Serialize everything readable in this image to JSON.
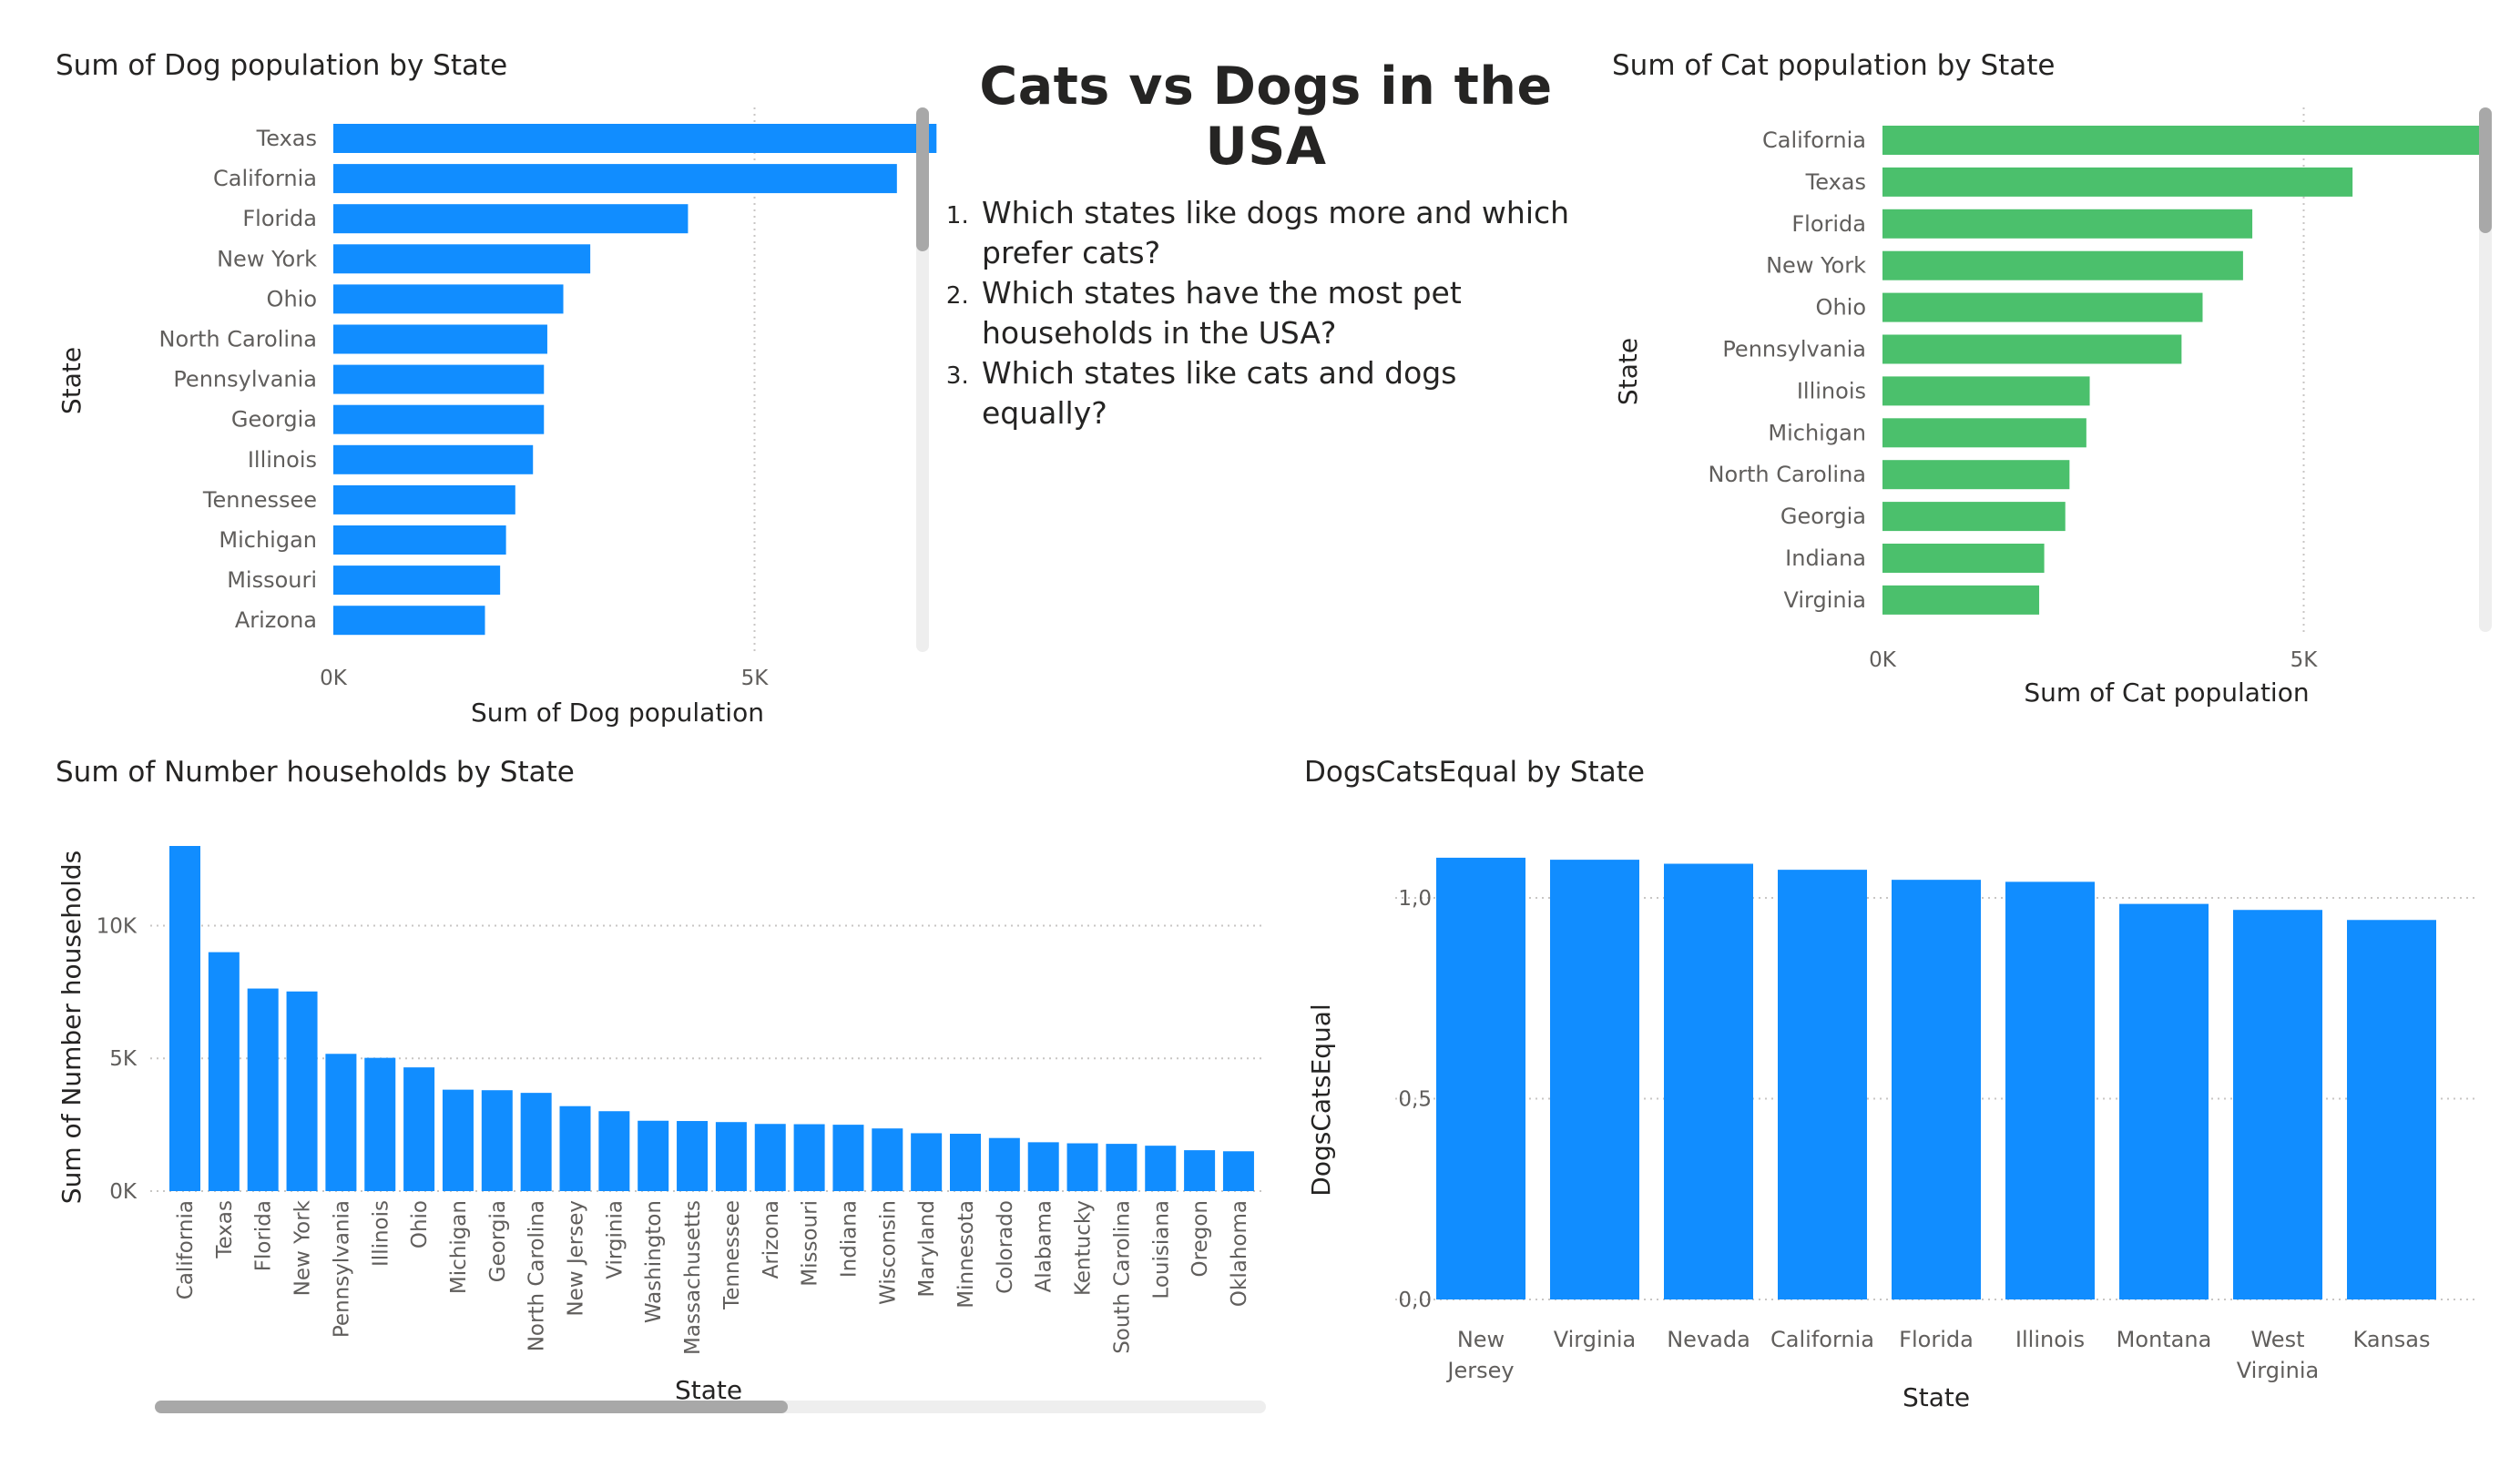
{
  "report": {
    "title": "Cats vs Dogs in the USA",
    "questions": [
      "Which states like dogs more and which prefer cats?",
      "Which states have the most pet households in the USA?",
      "Which states like cats and dogs equally?"
    ]
  },
  "colors": {
    "dog_bar": "#118DFF",
    "cat_bar": "#4BC06C",
    "axis_text": "#605E5C",
    "title_text": "#252423",
    "grid": "#c8c6c4"
  },
  "chart_data": [
    {
      "id": "dog",
      "type": "bar",
      "orientation": "horizontal",
      "title": "Sum of Dog population by State",
      "xlabel": "Sum of Dog population",
      "ylabel": "State",
      "categories": [
        "Texas",
        "California",
        "Florida",
        "New York",
        "Ohio",
        "North Carolina",
        "Pennsylvania",
        "Georgia",
        "Illinois",
        "Tennessee",
        "Michigan",
        "Missouri",
        "Arizona"
      ],
      "values": [
        7160,
        6690,
        4210,
        3050,
        2730,
        2540,
        2500,
        2500,
        2370,
        2160,
        2050,
        1980,
        1800
      ],
      "xticks": [
        "0K",
        "5K"
      ],
      "xtick_values": [
        0,
        5000
      ],
      "xlim": [
        0,
        8000
      ],
      "grid": true,
      "color": "#118DFF"
    },
    {
      "id": "cat",
      "type": "bar",
      "orientation": "horizontal",
      "title": "Sum of Cat population by State",
      "xlabel": "Sum of Cat population",
      "ylabel": "State",
      "categories": [
        "California",
        "Texas",
        "Florida",
        "New York",
        "Ohio",
        "Pennsylvania",
        "Illinois",
        "Michigan",
        "North Carolina",
        "Georgia",
        "Indiana",
        "Virginia"
      ],
      "values": [
        7120,
        5580,
        4390,
        4280,
        3800,
        3550,
        2460,
        2420,
        2220,
        2170,
        1920,
        1860
      ],
      "xticks": [
        "0K",
        "5K"
      ],
      "xtick_values": [
        0,
        5000
      ],
      "xlim": [
        0,
        8000
      ],
      "grid": true,
      "color": "#4BC06C"
    },
    {
      "id": "households",
      "type": "bar",
      "orientation": "vertical",
      "title": "Sum of Number households by State",
      "xlabel": "State",
      "ylabel": "Sum of Number households",
      "categories": [
        "California",
        "Texas",
        "Florida",
        "New York",
        "Pennsylvania",
        "Illinois",
        "Ohio",
        "Michigan",
        "Georgia",
        "North Carolina",
        "New Jersey",
        "Virginia",
        "Washington",
        "Massachusetts",
        "Tennessee",
        "Arizona",
        "Missouri",
        "Indiana",
        "Wisconsin",
        "Maryland",
        "Minnesota",
        "Colorado",
        "Alabama",
        "Kentucky",
        "South Carolina",
        "Louisiana",
        "Oregon",
        "Oklahoma"
      ],
      "values": [
        13000,
        9000,
        7630,
        7520,
        5170,
        5020,
        4660,
        3820,
        3800,
        3700,
        3200,
        3010,
        2650,
        2640,
        2600,
        2530,
        2520,
        2500,
        2360,
        2180,
        2160,
        2000,
        1840,
        1800,
        1780,
        1710,
        1540,
        1500
      ],
      "yticks": [
        "0K",
        "5K",
        "10K"
      ],
      "ytick_values": [
        0,
        5000,
        10000
      ],
      "ylim": [
        0,
        13000
      ],
      "grid": true,
      "color": "#118DFF"
    },
    {
      "id": "equal",
      "type": "bar",
      "orientation": "vertical",
      "title": "DogsCatsEqual by State",
      "xlabel": "State",
      "ylabel": "DogsCatsEqual",
      "categories": [
        [
          "New",
          "Jersey"
        ],
        [
          "Virginia"
        ],
        [
          "Nevada"
        ],
        [
          "California"
        ],
        [
          "Florida"
        ],
        [
          "Illinois"
        ],
        [
          "Montana"
        ],
        [
          "West",
          "Virginia"
        ],
        [
          "Kansas"
        ]
      ],
      "values": [
        1.1,
        1.095,
        1.085,
        1.07,
        1.045,
        1.04,
        0.985,
        0.97,
        0.945
      ],
      "yticks": [
        "0,0",
        "0,5",
        "1,0"
      ],
      "ytick_values": [
        0,
        0.5,
        1.0
      ],
      "ylim": [
        0,
        1.0
      ],
      "grid": true,
      "color": "#118DFF"
    }
  ]
}
